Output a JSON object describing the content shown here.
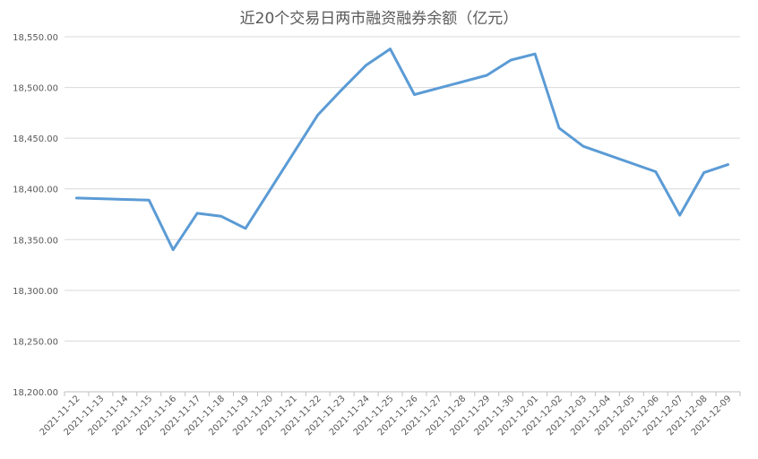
{
  "chart_data": {
    "type": "line",
    "title": "近20个交易日两市融资融券余额（亿元）",
    "xlabel": "",
    "ylabel": "",
    "ylim": [
      18200,
      18550
    ],
    "yticks": [
      "18,200.00",
      "18,250.00",
      "18,300.00",
      "18,350.00",
      "18,400.00",
      "18,450.00",
      "18,500.00",
      "18,550.00"
    ],
    "grid": true,
    "legend": "none",
    "categories": [
      "2021-11-12",
      "2021-11-13",
      "2021-11-14",
      "2021-11-15",
      "2021-11-16",
      "2021-11-17",
      "2021-11-18",
      "2021-11-19",
      "2021-11-20",
      "2021-11-21",
      "2021-11-22",
      "2021-11-23",
      "2021-11-24",
      "2021-11-25",
      "2021-11-26",
      "2021-11-27",
      "2021-11-28",
      "2021-11-29",
      "2021-11-30",
      "2021-12-01",
      "2021-12-02",
      "2021-12-03",
      "2021-12-04",
      "2021-12-05",
      "2021-12-06",
      "2021-12-07",
      "2021-12-08",
      "2021-12-09"
    ],
    "points": [
      {
        "x": "2021-11-12",
        "y": 18391
      },
      {
        "x": "2021-11-15",
        "y": 18389
      },
      {
        "x": "2021-11-16",
        "y": 18340
      },
      {
        "x": "2021-11-17",
        "y": 18376
      },
      {
        "x": "2021-11-18",
        "y": 18373
      },
      {
        "x": "2021-11-19",
        "y": 18361
      },
      {
        "x": "2021-11-22",
        "y": 18473
      },
      {
        "x": "2021-11-23",
        "y": 18498
      },
      {
        "x": "2021-11-24",
        "y": 18522
      },
      {
        "x": "2021-11-25",
        "y": 18538
      },
      {
        "x": "2021-11-26",
        "y": 18493
      },
      {
        "x": "2021-11-29",
        "y": 18512
      },
      {
        "x": "2021-11-30",
        "y": 18527
      },
      {
        "x": "2021-12-01",
        "y": 18533
      },
      {
        "x": "2021-12-02",
        "y": 18460
      },
      {
        "x": "2021-12-03",
        "y": 18442
      },
      {
        "x": "2021-12-06",
        "y": 18417
      },
      {
        "x": "2021-12-07",
        "y": 18374
      },
      {
        "x": "2021-12-08",
        "y": 18416
      },
      {
        "x": "2021-12-09",
        "y": 18424
      }
    ],
    "series_color": "#5b9bd5"
  }
}
